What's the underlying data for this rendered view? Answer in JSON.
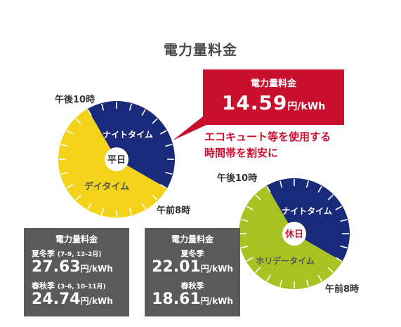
{
  "title": "電力量料金",
  "weekday": {
    "center": "平日",
    "night": "ナイトタイム",
    "day": "デイタイム",
    "label_start": "午後10時",
    "label_end": "午前8時"
  },
  "holiday": {
    "center": "休日",
    "night": "ナイトタイム",
    "day": "ホリデータイム",
    "label_start": "午後10時",
    "label_end": "午前8時"
  },
  "night_rate": {
    "title": "電力量料金",
    "price": "14.59",
    "unit": "円/kWh"
  },
  "catch": {
    "line1": "エコキュート等を使用する",
    "line2": "時間帯を割安に"
  },
  "weekday_rates": {
    "title": "電力量料金",
    "season1": "夏冬季",
    "season1_months": "(7-9, 12-2月)",
    "price1": "27.63",
    "season2": "春秋季",
    "season2_months": "(3-6, 10-11月)",
    "price2": "24.74",
    "unit": "円/kWh"
  },
  "holiday_rates": {
    "title": "電力量料金",
    "season1": "夏冬季",
    "price1": "22.01",
    "season2": "春秋季",
    "price2": "18.61",
    "unit": "円/kWh"
  },
  "colors": {
    "night": "#1a2a7a",
    "weekday_day": "#f3d31a",
    "holiday_day": "#a8c221",
    "accent": "#c8102e",
    "gray_box": "#5a5a5a"
  }
}
